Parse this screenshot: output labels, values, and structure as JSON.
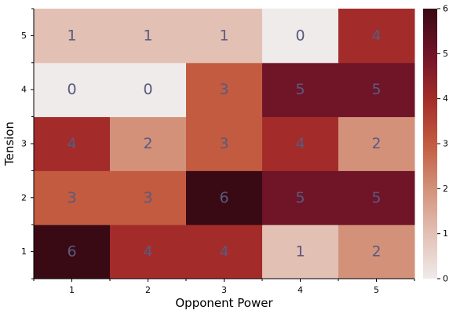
{
  "chart_data": {
    "type": "heatmap",
    "title": "",
    "xlabel": "Opponent Power",
    "ylabel": "Tension",
    "x_categories": [
      "1",
      "2",
      "3",
      "4",
      "5"
    ],
    "y_categories": [
      "1",
      "2",
      "3",
      "4",
      "5"
    ],
    "values": [
      [
        6,
        4,
        4,
        1,
        2
      ],
      [
        3,
        3,
        6,
        5,
        5
      ],
      [
        4,
        2,
        3,
        4,
        2
      ],
      [
        0,
        0,
        3,
        5,
        5
      ],
      [
        1,
        1,
        1,
        0,
        4
      ]
    ],
    "values_row_order": "y ascending (row 0 = Tension 1)",
    "color_range": [
      0,
      6
    ],
    "colorbar_ticks": [
      "0",
      "1",
      "2",
      "3",
      "4",
      "5",
      "6"
    ],
    "colormap": [
      "#efebea",
      "#e3c0b4",
      "#d3917a",
      "#c25b40",
      "#a32c2a",
      "#701428",
      "#3a0a14"
    ],
    "annotation_color": "#5a5a80",
    "grid": false
  }
}
